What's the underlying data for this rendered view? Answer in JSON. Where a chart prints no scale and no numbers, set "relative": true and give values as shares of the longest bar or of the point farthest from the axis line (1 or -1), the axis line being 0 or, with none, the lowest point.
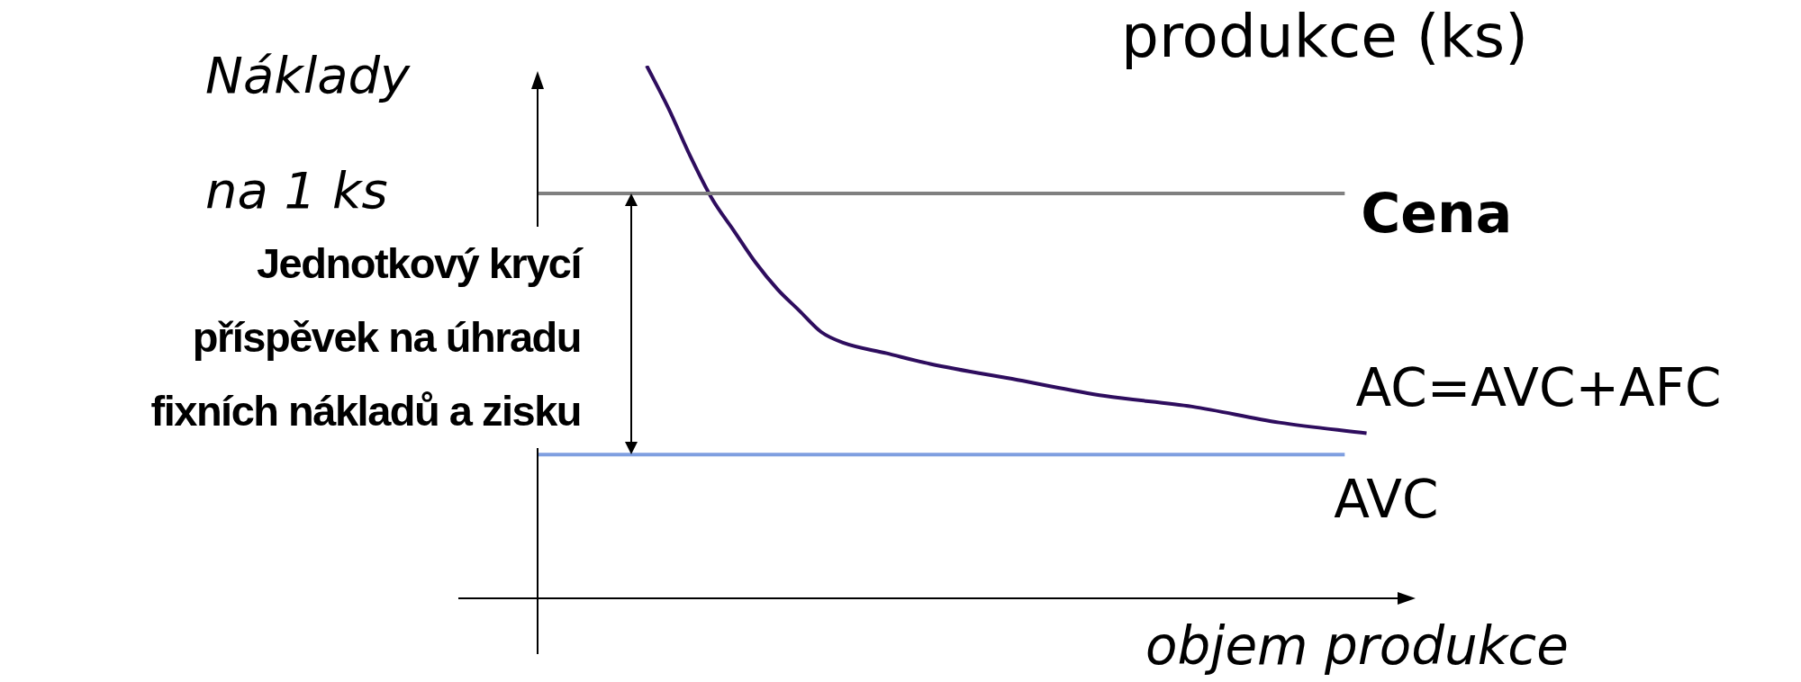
{
  "chart_data": {
    "type": "line",
    "relative": true,
    "title": "produkce (ks)",
    "ylabel": "Náklady\nna 1 ks",
    "xlabel": "objem produkce",
    "categories": [
      null,
      null,
      null,
      null,
      null,
      null,
      null,
      null,
      null,
      null,
      null,
      null,
      null,
      null,
      null,
      null,
      null,
      null,
      null,
      null,
      null,
      null,
      null,
      null,
      null,
      null,
      null,
      null,
      null,
      null,
      null,
      null,
      null,
      null,
      null,
      null,
      null,
      null,
      null,
      null,
      null
    ],
    "series": [
      {
        "name": "Cena",
        "color": "#808080",
        "values": [
          0.76,
          0.76,
          0.76,
          0.76,
          0.76,
          0.76,
          0.76,
          0.76,
          0.76,
          0.76,
          0.76,
          0.76,
          0.76,
          0.76,
          0.76,
          0.76,
          0.76,
          0.76,
          0.76,
          0.76,
          0.76,
          0.76,
          0.76,
          0.76,
          0.76,
          0.76,
          0.76,
          0.76,
          0.76,
          0.76,
          0.76,
          0.76,
          0.76,
          0.76,
          0.76,
          0.76,
          0.76,
          0.76,
          null,
          null,
          null
        ]
      },
      {
        "name": "AC=AVC+AFC",
        "color": "#2e0d5e",
        "values": [
          null,
          null,
          null,
          null,
          null,
          1.0,
          0.92,
          0.83,
          0.75,
          0.69,
          0.63,
          0.58,
          0.54,
          0.5,
          0.48,
          null,
          0.46,
          null,
          0.44,
          null,
          null,
          null,
          0.41,
          null,
          null,
          null,
          0.38,
          null,
          null,
          null,
          0.36,
          null,
          null,
          null,
          0.33,
          null,
          null,
          null,
          0.31,
          null,
          null
        ]
      },
      {
        "name": "AVC",
        "color": "#7f9fe0",
        "values": [
          0.27,
          0.27,
          0.27,
          0.27,
          0.27,
          0.27,
          0.27,
          0.27,
          0.27,
          0.27,
          0.27,
          0.27,
          0.27,
          0.27,
          0.27,
          0.27,
          0.27,
          0.27,
          0.27,
          0.27,
          0.27,
          0.27,
          0.27,
          0.27,
          0.27,
          0.27,
          0.27,
          0.27,
          0.27,
          0.27,
          0.27,
          0.27,
          0.27,
          0.27,
          0.27,
          0.27,
          0.27,
          0.27,
          null,
          null,
          null
        ]
      }
    ],
    "annotations": [
      {
        "text": "Jednotkový krycí\npříspěvek na úhradu\nfixních nákladů a zisku"
      }
    ],
    "legend": false,
    "grid": false,
    "marker": "none",
    "line_style": "solid"
  }
}
